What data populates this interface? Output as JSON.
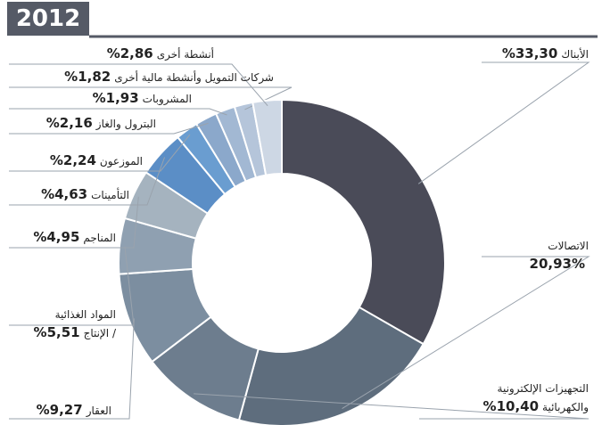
{
  "chart_data": {
    "type": "donut",
    "title": "2012",
    "categories": [
      [
        "الأبناك"
      ],
      [
        "الاتصالات"
      ],
      [
        "التجهيزات الإلكترونية",
        "والكهربائية"
      ],
      [
        "العقار"
      ],
      [
        "المواد الغذائية",
        "/ الإنتاج"
      ],
      [
        "المناجم"
      ],
      [
        "التأمينات"
      ],
      [
        "الموزعون"
      ],
      [
        "البترول والغاز"
      ],
      [
        "المشروبات"
      ],
      [
        "شركات التمويل وأنشطة مالية أخرى"
      ],
      [
        "أنشطة أخرى"
      ]
    ],
    "values": [
      33.3,
      20.93,
      10.4,
      9.27,
      5.51,
      4.95,
      4.63,
      2.24,
      2.16,
      1.93,
      1.82,
      2.86
    ],
    "value_labels": [
      "33,30%",
      "20,93%",
      "10,40%",
      "9,27%",
      "5,51%",
      "4,95%",
      "4,63%",
      "2,24%",
      "2,16%",
      "1,93%",
      "1,82%",
      "2,86%"
    ],
    "colors": [
      "#4a4b58",
      "#5e6d7d",
      "#6d7d8e",
      "#7c8ea0",
      "#8fa0b1",
      "#a5b3bf",
      "#5b8ec6",
      "#6a9dd0",
      "#8ba8cb",
      "#a2b8d3",
      "#b5c5da",
      "#cdd7e4"
    ]
  }
}
